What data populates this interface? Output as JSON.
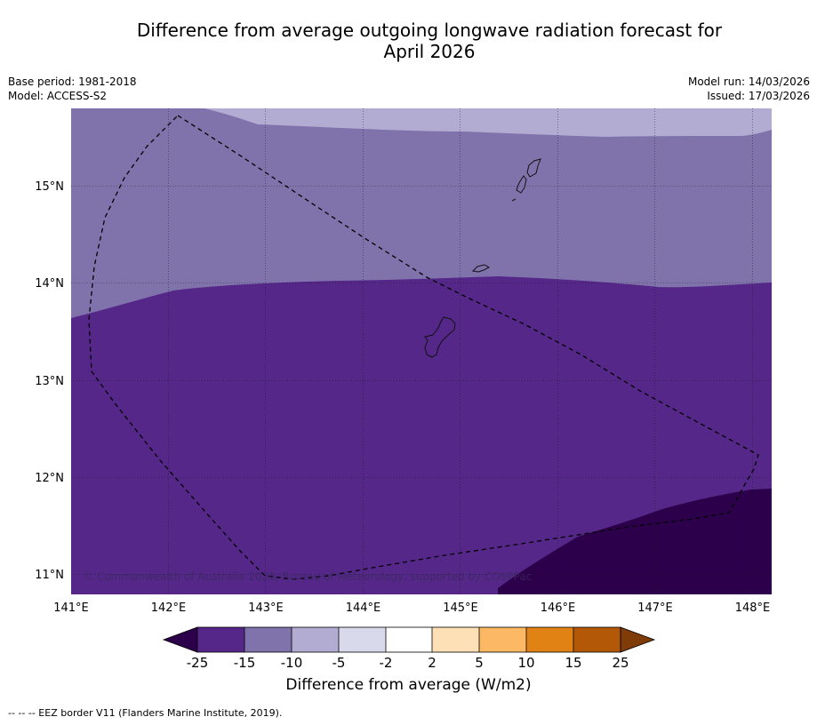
{
  "title": {
    "line1": "Difference from average outgoing longwave radiation forecast for",
    "line2": "April 2026"
  },
  "meta": {
    "base_period": "Base period: 1981-2018",
    "model": "Model: ACCESS-S2",
    "model_run": "Model run: 14/03/2026",
    "issued": "Issued: 17/03/2026"
  },
  "map": {
    "lon_ticks": [
      "141°E",
      "142°E",
      "143°E",
      "144°E",
      "145°E",
      "146°E",
      "147°E",
      "148°E"
    ],
    "lat_ticks": [
      "15°N",
      "14°N",
      "13°N",
      "12°N",
      "11°N"
    ],
    "copyright": "© Commonwealth of Australia 2026, Bureau of Meteorology, supported by COSPPac",
    "colors": {
      "lt_-25": "#2d004b",
      "-25_-15": "#542788",
      "-15_-10": "#8073ac",
      "-10_-5": "#b2abd2",
      "-5_-2": "#d8daeb",
      "-2_2": "#ffffff",
      "2_5": "#fee0b6",
      "5_10": "#fdb863",
      "10_15": "#e08214",
      "15_25": "#b35806",
      "gt_25": "#7f3b08"
    }
  },
  "colorbar": {
    "ticks": [
      "-25",
      "-15",
      "-10",
      "-5",
      "-2",
      "2",
      "5",
      "10",
      "15",
      "25"
    ],
    "label": "Difference from average (W/m2)"
  },
  "footer": {
    "eez_legend": "--  --  -- EEZ border V11 (Flanders Marine Institute, 2019)."
  }
}
